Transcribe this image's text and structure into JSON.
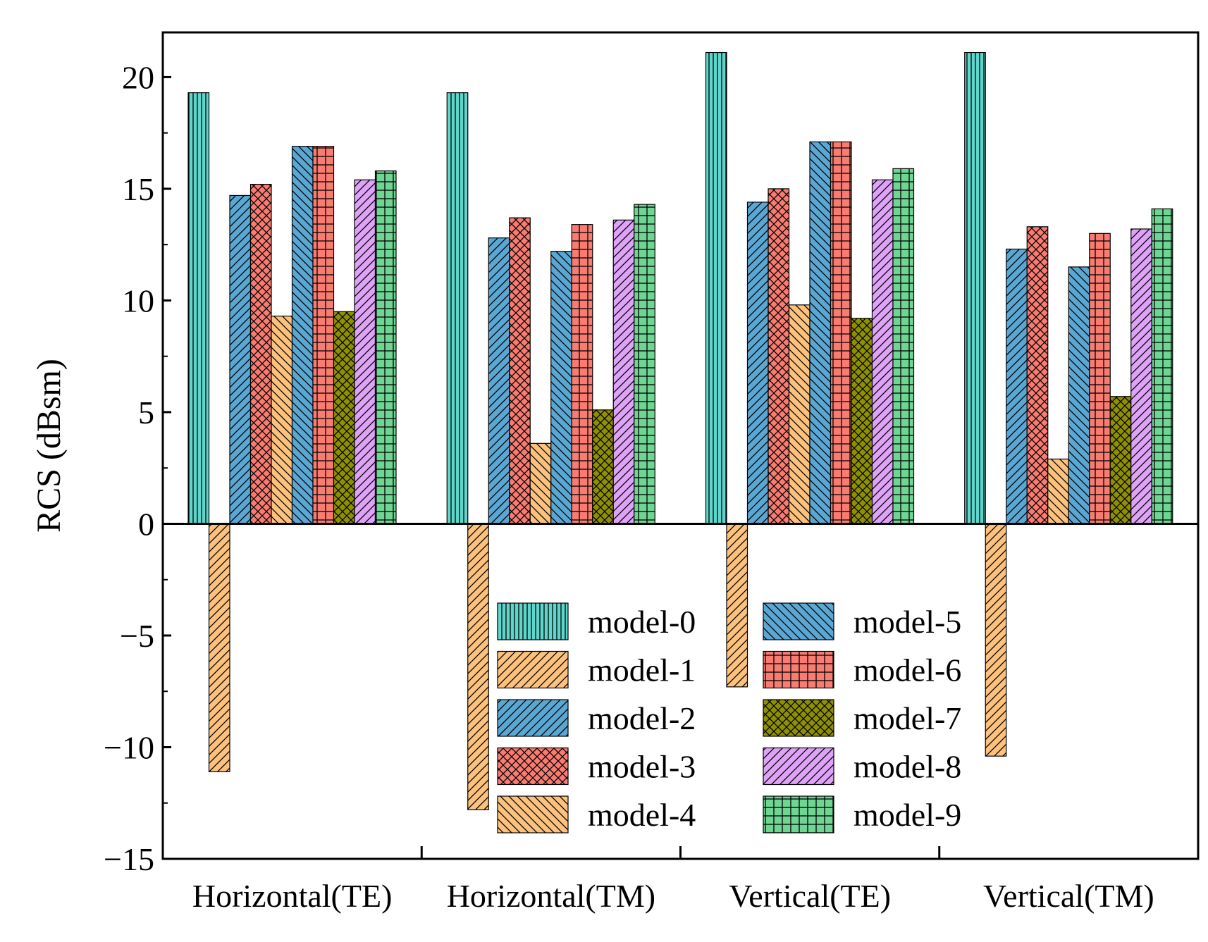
{
  "chart_data": {
    "type": "bar",
    "title": "",
    "xlabel": "",
    "ylabel": "RCS (dBsm)",
    "ylim": [
      -15,
      22
    ],
    "yticks": [
      -15,
      -10,
      -5,
      0,
      5,
      10,
      15,
      20
    ],
    "ytick_labels": [
      "−15",
      "−10",
      "−5",
      "0",
      "5",
      "10",
      "15",
      "20"
    ],
    "categories": [
      "Horizontal(TE)",
      "Horizontal(TM)",
      "Vertical(TE)",
      "Vertical(TM)"
    ],
    "legend_position": "lower-center",
    "series": [
      {
        "name": "model-0",
        "color": "#5fd6cc",
        "hatch": "vertical",
        "values": [
          19.3,
          19.3,
          21.1,
          21.1
        ]
      },
      {
        "name": "model-1",
        "color": "#fcc27d",
        "hatch": "forward",
        "values": [
          -11.1,
          -12.8,
          -7.3,
          -10.4
        ]
      },
      {
        "name": "model-2",
        "color": "#5ba7d3",
        "hatch": "forward",
        "values": [
          14.7,
          12.8,
          14.4,
          12.3
        ]
      },
      {
        "name": "model-3",
        "color": "#f87c71",
        "hatch": "cross",
        "values": [
          15.2,
          13.7,
          15.0,
          13.3
        ]
      },
      {
        "name": "model-4",
        "color": "#fcc27d",
        "hatch": "backward",
        "values": [
          9.3,
          3.6,
          9.8,
          2.9
        ]
      },
      {
        "name": "model-5",
        "color": "#5ba7d3",
        "hatch": "backward",
        "values": [
          16.9,
          12.2,
          17.1,
          11.5
        ]
      },
      {
        "name": "model-6",
        "color": "#f87c71",
        "hatch": "grid",
        "values": [
          16.9,
          13.4,
          17.1,
          13.0
        ]
      },
      {
        "name": "model-7",
        "color": "#8f9000",
        "hatch": "cross",
        "values": [
          9.5,
          5.1,
          9.2,
          5.7
        ]
      },
      {
        "name": "model-8",
        "color": "#dea2f7",
        "hatch": "forward",
        "values": [
          15.4,
          13.6,
          15.4,
          13.2
        ]
      },
      {
        "name": "model-9",
        "color": "#6fd593",
        "hatch": "grid",
        "values": [
          15.8,
          14.3,
          15.9,
          14.1
        ]
      }
    ]
  }
}
